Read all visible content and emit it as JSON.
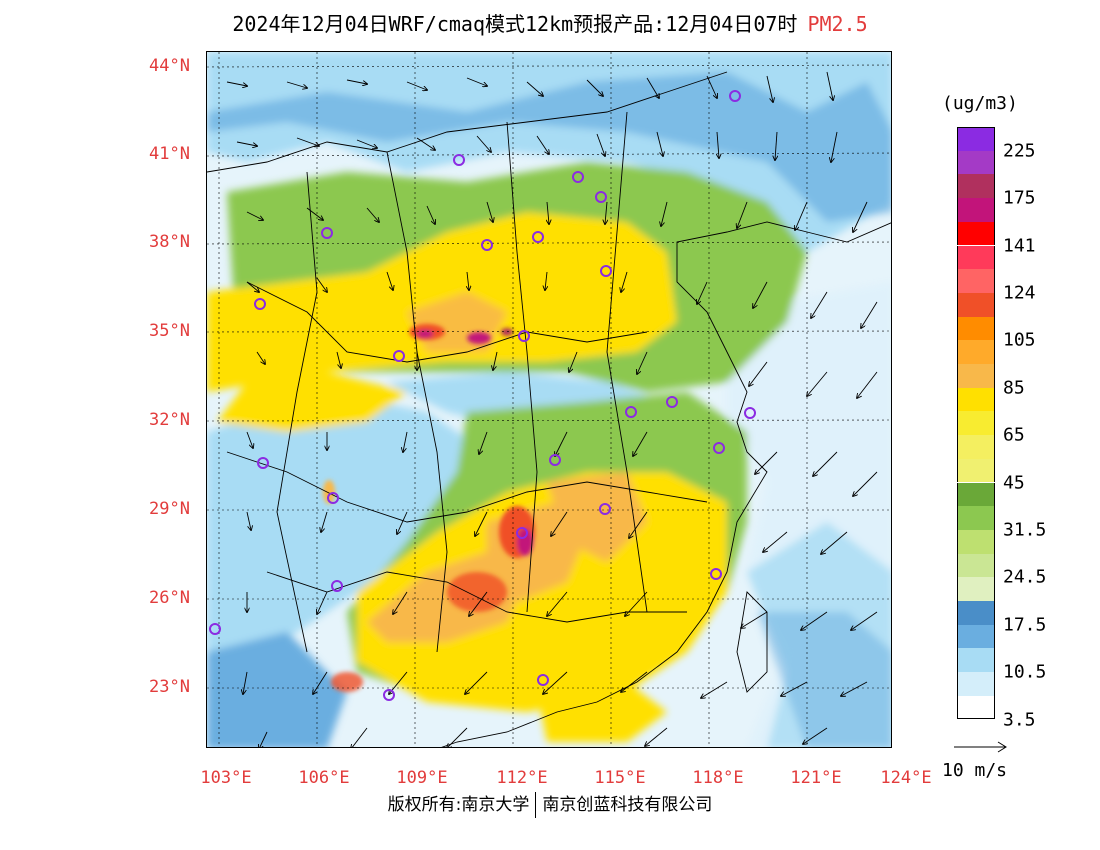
{
  "title": {
    "main": "2024年12月04日WRF/cmaq模式12km预报产品:12月04日07时",
    "variable": "PM2.5"
  },
  "axes": {
    "lat_ticks": [
      "44°N",
      "41°N",
      "38°N",
      "35°N",
      "32°N",
      "29°N",
      "26°N",
      "23°N"
    ],
    "lon_ticks": [
      "103°E",
      "106°E",
      "109°E",
      "112°E",
      "115°E",
      "118°E",
      "121°E",
      "124°E"
    ]
  },
  "legend": {
    "unit": "(ug/m3)",
    "labels": [
      "225",
      "175",
      "141",
      "124",
      "105",
      "85",
      "65",
      "45",
      "31.5",
      "24.5",
      "17.5",
      "10.5",
      "3.5"
    ],
    "colors_top_to_bottom": [
      "#8b2be2",
      "#a43ac6",
      "#b0305e",
      "#c2147a",
      "#ff0000",
      "#ff3a5a",
      "#ff6464",
      "#f05028",
      "#ff8c00",
      "#ffaa2a",
      "#f8b84a",
      "#ffe000",
      "#f8ec30",
      "#f4ef60",
      "#f0f070",
      "#6aa838",
      "#8cc850",
      "#bee070",
      "#cae694",
      "#e0f0c0",
      "#4a8ec8",
      "#6aaee0",
      "#a8dcf4",
      "#d4eefa",
      "#ffffff"
    ],
    "wind_ref": "10 m/s"
  },
  "footer": {
    "left": "版权所有:南京大学",
    "right": "南京创蓝科技有限公司"
  },
  "map_colors": {
    "sea": "#dff1fb",
    "low": "#a8dcf4",
    "mid_low": "#6aaee0",
    "green": "#8cc850",
    "yellow": "#ffe000",
    "orange": "#f8b84a",
    "red_orange": "#f05028",
    "magenta": "#c2147a",
    "station_marker": "#8b2be2"
  }
}
